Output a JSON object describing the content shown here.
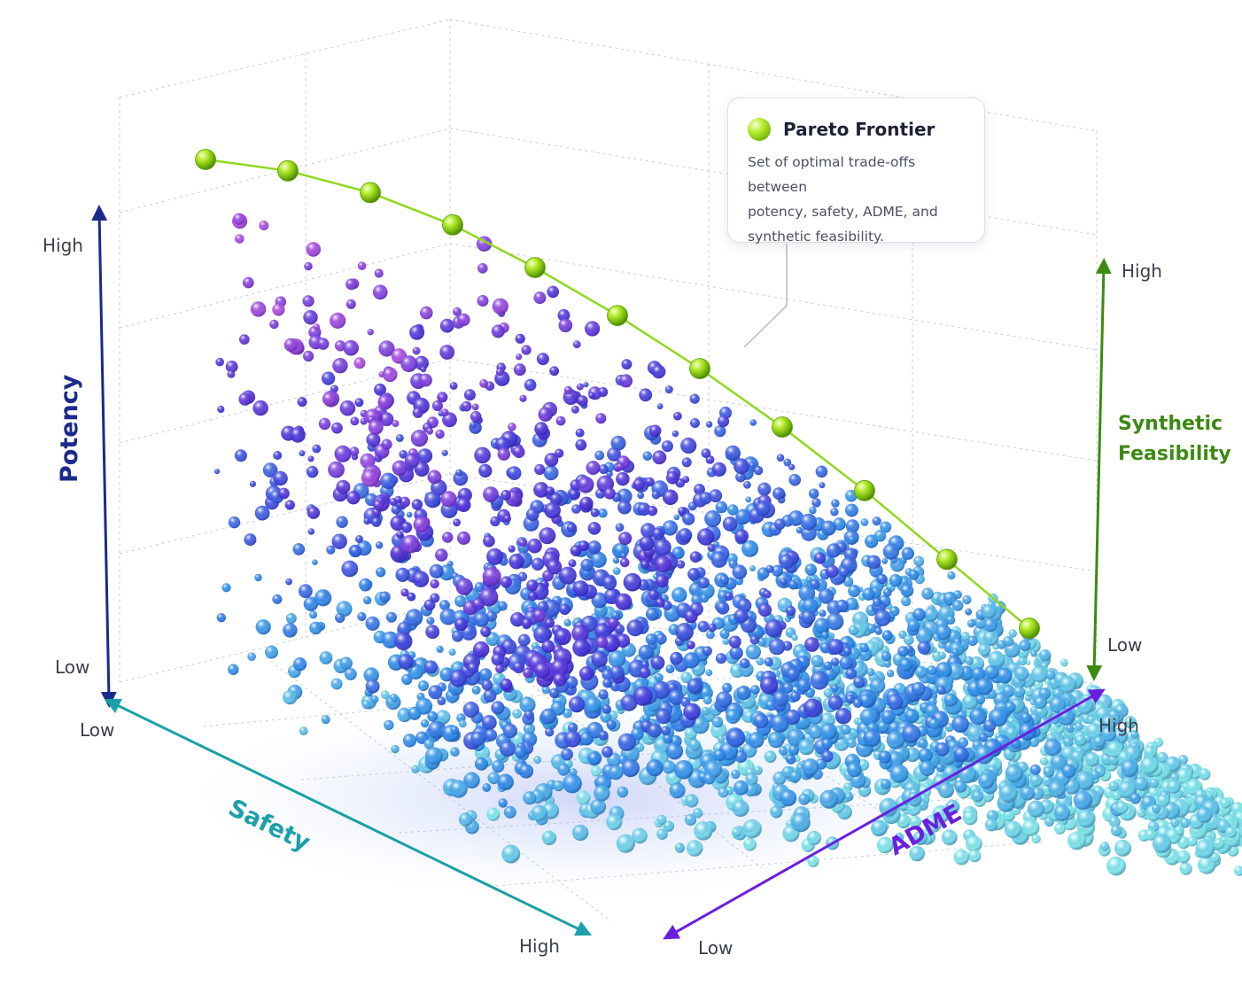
{
  "chart_data": {
    "type": "scatter",
    "dimensions": 3,
    "axes": {
      "potency": {
        "label": "Potency",
        "low_label": "Low",
        "high_label": "High",
        "color": "#1a2a8c"
      },
      "safety": {
        "label": "Safety",
        "low_label": "Low",
        "high_label": "High",
        "color": "#1aa0a8"
      },
      "adme": {
        "label": "ADME",
        "low_label": "Low",
        "high_label": "High",
        "color": "#6a1fe0"
      },
      "synthetic_feasibility": {
        "label_lines": [
          "Synthetic",
          "Feasibility"
        ],
        "low_label": "Low",
        "high_label": "High",
        "color": "#3d8a12"
      }
    },
    "color_gradient": [
      "#7fe9f0",
      "#2f8ff0",
      "#4a34e0",
      "#b04be6"
    ],
    "frontier_color": "#8fd81a",
    "pareto_frontier": [
      {
        "adme": 0.0,
        "potency": 1.0
      },
      {
        "adme": 0.1,
        "potency": 0.98
      },
      {
        "adme": 0.2,
        "potency": 0.94
      },
      {
        "adme": 0.3,
        "potency": 0.88
      },
      {
        "adme": 0.4,
        "potency": 0.8
      },
      {
        "adme": 0.5,
        "potency": 0.71
      },
      {
        "adme": 0.6,
        "potency": 0.61
      },
      {
        "adme": 0.7,
        "potency": 0.5
      },
      {
        "adme": 0.8,
        "potency": 0.38
      },
      {
        "adme": 0.9,
        "potency": 0.25
      },
      {
        "adme": 1.0,
        "potency": 0.12
      }
    ],
    "grid": true
  },
  "callout": {
    "title": "Pareto Frontier",
    "body_lines": [
      "Set of optimal trade-offs between",
      "potency, safety, ADME, and",
      "synthetic feasibility."
    ],
    "icon": "green-sphere-icon"
  }
}
